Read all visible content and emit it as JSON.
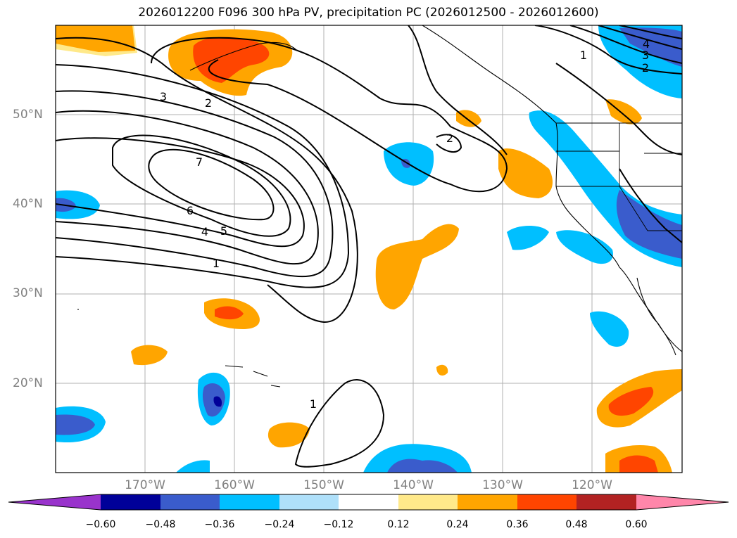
{
  "title": "2026012200 F096 300 hPa PV, precipitation PC (2026012500 - 2026012600)",
  "map": {
    "lat_labels": [
      "50°N",
      "40°N",
      "30°N",
      "20°N"
    ],
    "lon_labels": [
      "170°W",
      "160°W",
      "150°W",
      "140°W",
      "130°W",
      "120°W"
    ],
    "pv_contour_labels": [
      "7",
      "6",
      "5",
      "4",
      "3",
      "2",
      "1",
      "1",
      "2",
      "1",
      "4",
      "3",
      "2"
    ]
  },
  "colorbar": {
    "tick_labels": [
      "−0.60",
      "−0.48",
      "−0.36",
      "−0.24",
      "−0.12",
      "0.12",
      "0.24",
      "0.36",
      "0.48",
      "0.60"
    ],
    "colors": {
      "extend_low": "#9933cc",
      "c1": "#000099",
      "c2": "#3a5ccc",
      "c3": "#00bfff",
      "c4": "#afe0fa",
      "c5": "#ffffff",
      "c6": "#ffe98a",
      "c7": "#ffa500",
      "c8": "#ff4500",
      "c9": "#b22222",
      "extend_high": "#ff86aa"
    }
  }
}
